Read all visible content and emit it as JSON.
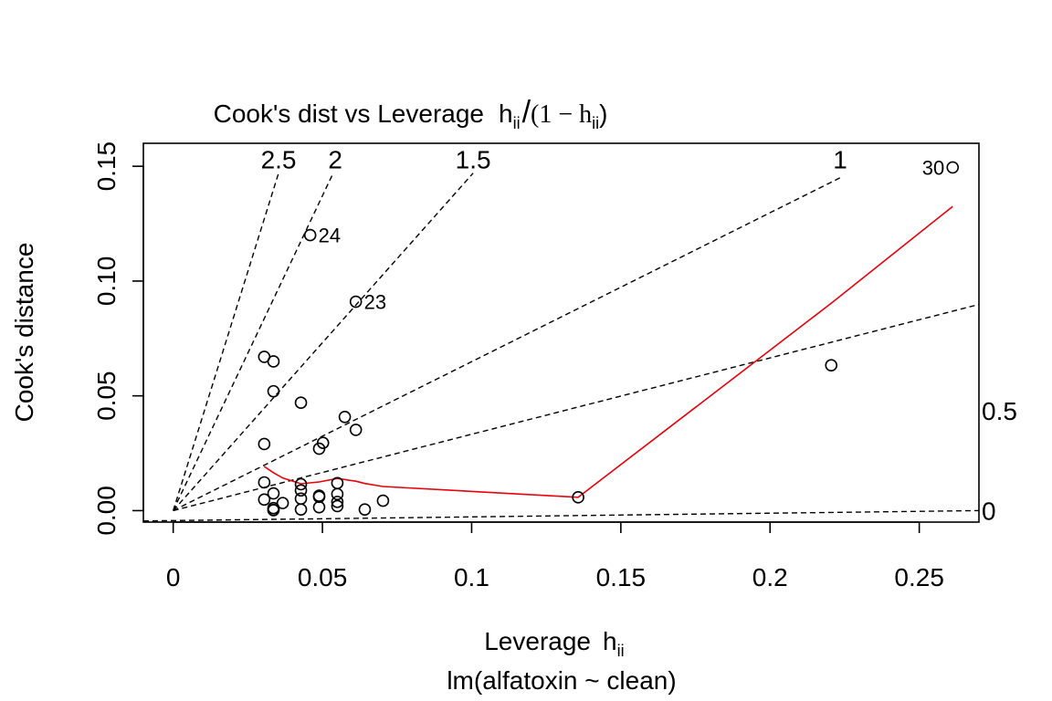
{
  "chart_data": {
    "type": "scatter",
    "title": "Cook's dist vs Leverage",
    "title_formula": {
      "lead": "h",
      "sub": "ii",
      "mid": "/",
      "open": "(1 − h",
      "close": ")"
    },
    "xlabel": "Leverage",
    "xlabel_symbol": {
      "base": "h",
      "sub": "ii"
    },
    "ylabel": "Cook's distance",
    "subtitle": "lm(alfatoxin ~ clean)",
    "xlim": [
      -0.01,
      0.27
    ],
    "ylim": [
      -0.005,
      0.16
    ],
    "x_ticks": [
      {
        "value": 0,
        "label": "0"
      },
      {
        "value": 0.05,
        "label": "0.05"
      },
      {
        "value": 0.1,
        "label": "0.1"
      },
      {
        "value": 0.15,
        "label": "0.15"
      },
      {
        "value": 0.2,
        "label": "0.2"
      },
      {
        "value": 0.25,
        "label": "0.25"
      }
    ],
    "y_ticks": [
      {
        "value": 0,
        "label": "0.00"
      },
      {
        "value": 0.05,
        "label": "0.05"
      },
      {
        "value": 0.1,
        "label": "0.10"
      },
      {
        "value": 0.15,
        "label": "0.15"
      }
    ],
    "grid": false,
    "points": [
      {
        "x": 0.0336,
        "y": 0.0002
      },
      {
        "x": 0.0336,
        "y": 0.0011
      },
      {
        "x": 0.0336,
        "y": 0.0003
      },
      {
        "x": 0.0336,
        "y": 0.0075
      },
      {
        "x": 0.0305,
        "y": 0.0048
      },
      {
        "x": 0.0305,
        "y": 0.0123
      },
      {
        "x": 0.0305,
        "y": 0.029
      },
      {
        "x": 0.0305,
        "y": 0.067
      },
      {
        "x": 0.0336,
        "y": 0.065
      },
      {
        "x": 0.0336,
        "y": 0.052
      },
      {
        "x": 0.0367,
        "y": 0.0033
      },
      {
        "x": 0.0428,
        "y": 0.0005
      },
      {
        "x": 0.0428,
        "y": 0.0052
      },
      {
        "x": 0.0428,
        "y": 0.0088
      },
      {
        "x": 0.0428,
        "y": 0.0115
      },
      {
        "x": 0.0428,
        "y": 0.047
      },
      {
        "x": 0.0459,
        "y": 0.12
      },
      {
        "x": 0.0489,
        "y": 0.0015
      },
      {
        "x": 0.0489,
        "y": 0.006
      },
      {
        "x": 0.0489,
        "y": 0.0065
      },
      {
        "x": 0.0489,
        "y": 0.027
      },
      {
        "x": 0.0502,
        "y": 0.0295
      },
      {
        "x": 0.055,
        "y": 0.002
      },
      {
        "x": 0.055,
        "y": 0.0038
      },
      {
        "x": 0.055,
        "y": 0.0072
      },
      {
        "x": 0.055,
        "y": 0.012
      },
      {
        "x": 0.0575,
        "y": 0.0408
      },
      {
        "x": 0.0612,
        "y": 0.0352
      },
      {
        "x": 0.0612,
        "y": 0.091
      },
      {
        "x": 0.0642,
        "y": 0.0005
      },
      {
        "x": 0.0703,
        "y": 0.0043
      },
      {
        "x": 0.1357,
        "y": 0.0058
      },
      {
        "x": 0.2205,
        "y": 0.0633
      },
      {
        "x": 0.2612,
        "y": 0.1495
      }
    ],
    "labeled_points": [
      {
        "label": "24",
        "x": 0.0459,
        "y": 0.12,
        "side": "right"
      },
      {
        "label": "23",
        "x": 0.0612,
        "y": 0.091,
        "side": "right"
      },
      {
        "label": "30",
        "x": 0.2612,
        "y": 0.1495,
        "side": "left"
      }
    ],
    "smooth_line": {
      "x": [
        0.0305,
        0.0336,
        0.0367,
        0.0428,
        0.0489,
        0.055,
        0.0612,
        0.0642,
        0.0703,
        0.1357,
        0.2205,
        0.2612
      ],
      "y": [
        0.0192,
        0.0165,
        0.0142,
        0.0117,
        0.0125,
        0.014,
        0.0128,
        0.0118,
        0.0105,
        0.0058,
        0.0903,
        0.1325
      ]
    },
    "contours": [
      {
        "label": "2.5",
        "x_end": 0.0353,
        "y_end": 0.147,
        "label_x": 0.0353,
        "label_y": 0.149
      },
      {
        "label": "2",
        "x_end": 0.0536,
        "y_end": 0.147,
        "label_x": 0.0543,
        "label_y": 0.149
      },
      {
        "label": "1.5",
        "x_end": 0.1005,
        "y_end": 0.147,
        "label_x": 0.1005,
        "label_y": 0.149
      },
      {
        "label": "1",
        "x_end": 0.2235,
        "y_end": 0.145,
        "label_x": 0.2235,
        "label_y": 0.149
      },
      {
        "label": "0.5",
        "x_end": 0.27,
        "y_end": 0.0898,
        "label_y": 0.0435
      },
      {
        "label": "0",
        "x_start": -0.01,
        "x_end": 0.27,
        "y_end": 0,
        "label_y": 0
      }
    ],
    "contour_origin": {
      "x": 0,
      "y": 0
    },
    "contour_0_start_y": -0.0045
  }
}
